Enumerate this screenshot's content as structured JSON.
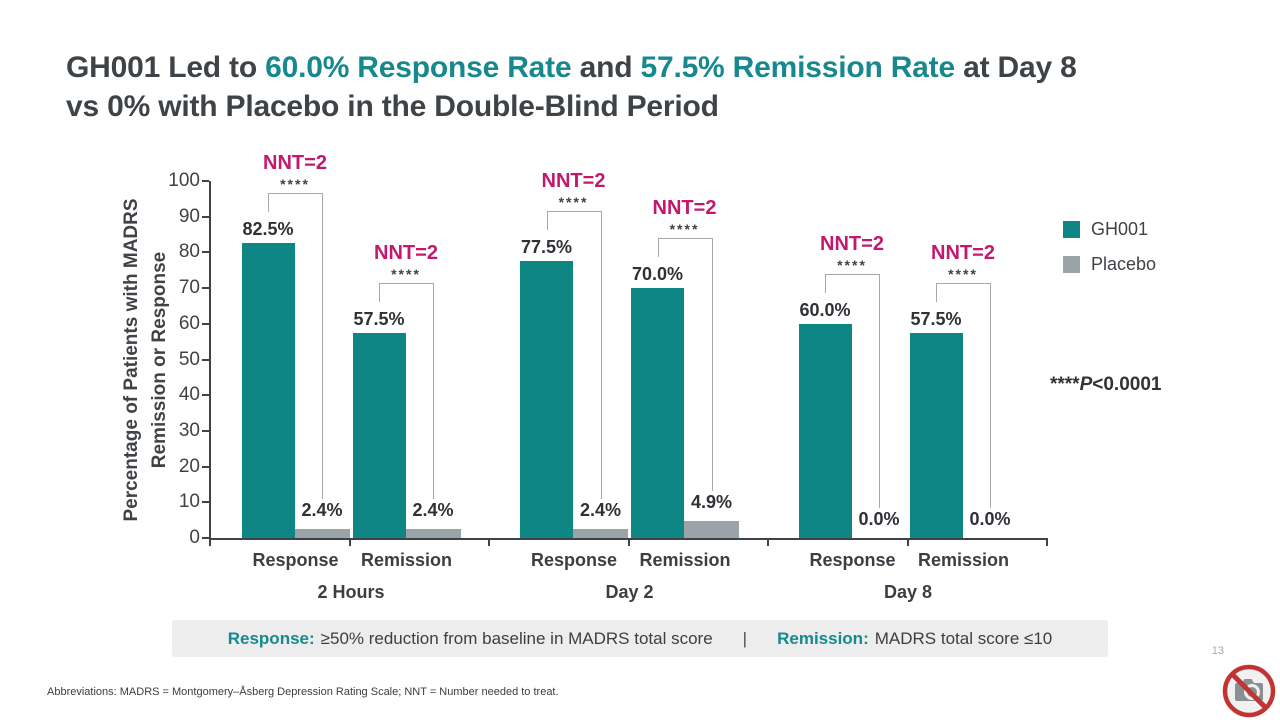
{
  "slide": {
    "title": {
      "part1": "GH001 Led to ",
      "highlight1": "60.0% Response Rate",
      "part2": " and ",
      "highlight2": "57.5% Remission Rate",
      "part3": " at Day 8",
      "line2": "vs 0% with Placebo in the Double-Blind Period"
    },
    "footnote": "Abbreviations: MADRS = Montgomery–Åsberg Depression Rating Scale; NNT = Number needed to treat.",
    "page_number": "13",
    "icons": {
      "bottom_right": "no-camera-icon"
    }
  },
  "chart_data": {
    "type": "bar",
    "title": "",
    "ylabel_lines": [
      "Percentage of Patients with MADRS",
      "Remission or Response"
    ],
    "ylim": [
      0,
      100
    ],
    "yticks": [
      "0",
      "10",
      "20",
      "30",
      "40",
      "50",
      "60",
      "70",
      "80",
      "90",
      "100"
    ],
    "grid": false,
    "legend": {
      "position": "right",
      "entries": [
        {
          "name": "GH001",
          "color": "#0d8684"
        },
        {
          "name": "Placebo",
          "color": "#9aa3a8"
        }
      ]
    },
    "groups": [
      {
        "label": "2 Hours",
        "categories": [
          {
            "label": "Response",
            "values": {
              "GH001": 82.5,
              "Placebo": 2.4
            },
            "value_labels": {
              "GH001": "82.5%",
              "Placebo": "2.4%"
            },
            "annotation": "NNT=2",
            "significance": "****"
          },
          {
            "label": "Remission",
            "values": {
              "GH001": 57.5,
              "Placebo": 2.4
            },
            "value_labels": {
              "GH001": "57.5%",
              "Placebo": "2.4%"
            },
            "annotation": "NNT=2",
            "significance": "****"
          }
        ]
      },
      {
        "label": "Day 2",
        "categories": [
          {
            "label": "Response",
            "values": {
              "GH001": 77.5,
              "Placebo": 2.4
            },
            "value_labels": {
              "GH001": "77.5%",
              "Placebo": "2.4%"
            },
            "annotation": "NNT=2",
            "significance": "****"
          },
          {
            "label": "Remission",
            "values": {
              "GH001": 70.0,
              "Placebo": 4.9
            },
            "value_labels": {
              "GH001": "70.0%",
              "Placebo": "4.9%"
            },
            "annotation": "NNT=2",
            "significance": "****"
          }
        ]
      },
      {
        "label": "Day 8",
        "categories": [
          {
            "label": "Response",
            "values": {
              "GH001": 60.0,
              "Placebo": 0.0
            },
            "value_labels": {
              "GH001": "60.0%",
              "Placebo": "0.0%"
            },
            "annotation": "NNT=2",
            "significance": "****"
          },
          {
            "label": "Remission",
            "values": {
              "GH001": 57.5,
              "Placebo": 0.0
            },
            "value_labels": {
              "GH001": "57.5%",
              "Placebo": "0.0%"
            },
            "annotation": "NNT=2",
            "significance": "****"
          }
        ]
      }
    ],
    "pvalue_note": {
      "stars": "****",
      "p": "P",
      "rest": "<0.0001"
    }
  },
  "definition_bar": {
    "response_label": "Response:",
    "response_text": "≥50% reduction from baseline in MADRS total score",
    "separator": "|",
    "remission_label": "Remission:",
    "remission_text": "MADRS total score ≤10"
  },
  "colors": {
    "accent_teal": "#17898e",
    "bar_teal": "#0d8684",
    "placebo_gray": "#9aa3a8",
    "nnt_magenta": "#c4186f",
    "title_dark": "#3e4347"
  }
}
